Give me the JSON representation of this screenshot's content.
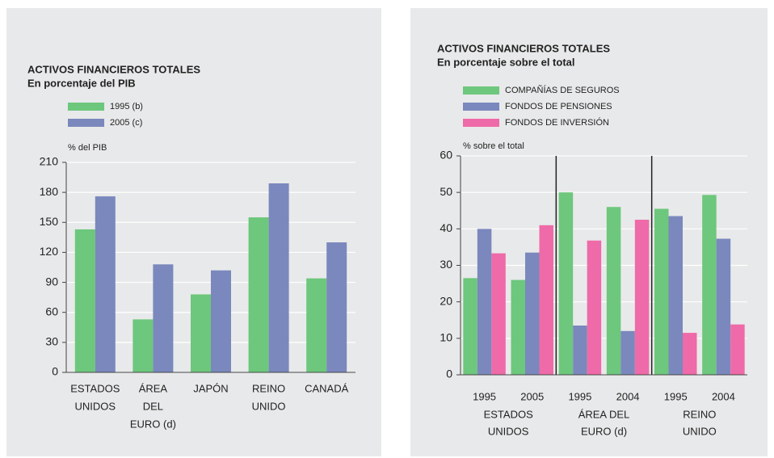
{
  "chart_data": [
    {
      "type": "bar",
      "title": "ACTIVOS FINANCIEROS TOTALES",
      "subtitle": "En porcentaje del PIB",
      "y_label": "% del PIB",
      "categories": [
        [
          "ESTADOS",
          "UNIDOS"
        ],
        [
          "ÁREA",
          "DEL",
          "EURO (d)"
        ],
        [
          "JAPÓN"
        ],
        [
          "REINO",
          "UNIDO"
        ],
        [
          "CANADÁ"
        ]
      ],
      "series": [
        {
          "name": "1995 (b)",
          "color": "#6dc77c",
          "values": [
            143,
            53,
            78,
            155,
            94
          ]
        },
        {
          "name": "2005 (c)",
          "color": "#7a88bd",
          "values": [
            176,
            108,
            102,
            189,
            130
          ]
        }
      ],
      "ylim": [
        0,
        210
      ],
      "yticks": [
        0,
        30,
        60,
        90,
        120,
        150,
        180,
        210
      ],
      "grid": true
    },
    {
      "type": "bar",
      "title": "ACTIVOS FINANCIEROS TOTALES",
      "subtitle": "En porcentaje sobre el total",
      "y_label": "% sobre el total",
      "categories": [
        "1995",
        "2005",
        "1995",
        "2004",
        "1995",
        "2004"
      ],
      "groups": [
        [
          "ESTADOS",
          "UNIDOS"
        ],
        [
          "ÁREA DEL",
          "EURO (d)"
        ],
        [
          "REINO",
          "UNIDO"
        ]
      ],
      "series": [
        {
          "name": "COMPAÑÍAS DE SEGUROS",
          "color": "#6dc77c",
          "values": [
            26.5,
            26,
            50,
            46,
            45.5,
            49.3
          ]
        },
        {
          "name": "FONDOS DE PENSIONES",
          "color": "#7a88bd",
          "values": [
            40,
            33.5,
            13.5,
            12,
            43.5,
            37.3
          ]
        },
        {
          "name": "FONDOS DE INVERSIÓN",
          "color": "#ef6aa8",
          "values": [
            33.3,
            41,
            36.8,
            42.5,
            11.5,
            13.8
          ]
        }
      ],
      "ylim": [
        0,
        60
      ],
      "yticks": [
        0,
        10,
        20,
        30,
        40,
        50,
        60
      ],
      "grid": true
    }
  ]
}
